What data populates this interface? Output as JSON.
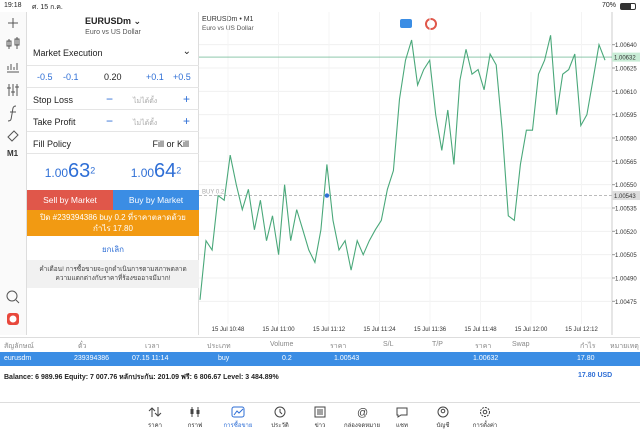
{
  "status": {
    "time": "19:18",
    "date": "ศ. 15 ก.ค.",
    "battery": "70%"
  },
  "toolbar": {
    "timeframe": "M1"
  },
  "order": {
    "symbol": "EURUSDm",
    "description": "Euro vs US Dollar",
    "execution": "Market Execution",
    "volume_steps": [
      "-0.5",
      "-0.1",
      "+0.1",
      "+0.5"
    ],
    "volume": "0.20",
    "stop_loss": {
      "label": "Stop Loss",
      "value": "ไม่ได้ตั้ง"
    },
    "take_profit": {
      "label": "Take Profit",
      "value": "ไม่ได้ตั้ง"
    },
    "fill_policy": {
      "label": "Fill Policy",
      "value": "Fill or Kill"
    },
    "bid": {
      "main": "1.00",
      "big": "63",
      "sup": "2"
    },
    "ask": {
      "main": "1.00",
      "big": "64",
      "sup": "2"
    },
    "sell_button": "Sell by Market",
    "buy_button": "Buy by Market",
    "close_button": [
      "ปิด #239394386 buy 0.2 ที่ราคาตลาดด้วย",
      "กำไร 17.80"
    ],
    "cancel": "ยกเลิก",
    "warning": [
      "คำเตือน! การซื้อขายจะถูกดำเนินการตามสภาพตลาด",
      "ความแตกต่างกับราคาที่ร้องขออาจมีมาก!"
    ]
  },
  "chart": {
    "symbol": "EURUSDm • M1",
    "description": "Euro vs US Dollar",
    "color": "#4aa87a",
    "ylim": [
      1.00463,
      1.00661
    ],
    "yticks": [
      {
        "value": 1.0064,
        "label": "1.00640"
      },
      1.00625,
      {
        "value": 1.0061,
        "label": "1.00610"
      },
      1.00595,
      {
        "value": 1.0058,
        "label": "1.00580"
      },
      1.00565,
      {
        "value": 1.0055,
        "label": "1.00550"
      },
      1.00535,
      {
        "value": 1.0052,
        "label": "1.00520"
      },
      1.00505,
      {
        "value": 1.0049,
        "label": "1.00490"
      },
      1.00475
    ],
    "xticks": [
      "15 Jul 10:48",
      "15 Jul 11:00",
      "15 Jul 11:12",
      "15 Jul 11:24",
      "15 Jul 11:36",
      "15 Jul 11:48",
      "15 Jul 12:00",
      "15 Jul 12:12"
    ],
    "bid": 1.00632,
    "buy_line": {
      "label": "BUY 0.2",
      "value": 1.00543,
      "index": 21
    },
    "values": [
      1.00476,
      1.00514,
      1.00508,
      1.00543,
      1.0054,
      1.00569,
      1.0055,
      1.00534,
      1.00547,
      1.00521,
      1.0054,
      1.00514,
      1.0053,
      1.00505,
      1.0055,
      1.00514,
      1.00534,
      1.00521,
      1.00508,
      1.005,
      1.00521,
      1.00563,
      1.00527,
      1.00508,
      1.00514,
      1.00495,
      1.00514,
      1.00505,
      1.00514,
      1.00521,
      1.00527,
      1.00547,
      1.00559,
      1.00605,
      1.0063,
      1.00643,
      1.00614,
      1.00624,
      1.0063,
      1.00595,
      1.00572,
      1.00598,
      1.00563,
      1.00617,
      1.00637,
      1.00621,
      1.00624,
      1.00611,
      1.00634,
      1.00627,
      1.00585,
      1.0053,
      1.00527,
      1.00563,
      1.00585,
      1.00585,
      1.00621,
      1.0063,
      1.00646,
      1.00595,
      1.00621,
      1.00624,
      1.00634,
      1.00588,
      1.00595,
      1.00617,
      1.0064,
      1.0063
    ]
  },
  "table": {
    "headers": [
      "สัญลักษณ์",
      "ตั๋ว",
      "เวลา",
      "ประเภท",
      "Volume",
      "ราคา",
      "S/L",
      "T/P",
      "ราคา",
      "Swap",
      "กำไร",
      "หมายเหตุ"
    ],
    "rows": [
      [
        "eurusdm",
        "239394386",
        "07.15 11:14",
        "buy",
        "0.2",
        "1.00543",
        "1.00632",
        "17.80"
      ]
    ],
    "summary": "Balance: 6 989.96 Equity: 7 007.76 หลักประกัน: 201.09 ฟรี: 6 806.67 Level: 3 484.89%",
    "total": "17.80  USD"
  },
  "tabs": [
    "ราคา",
    "กราฟ",
    "การซื้อขาย",
    "ประวัติ",
    "ข่าว",
    "กล่องจดหมาย",
    "แชท",
    "บัญชี",
    "การตั้งค่า"
  ]
}
